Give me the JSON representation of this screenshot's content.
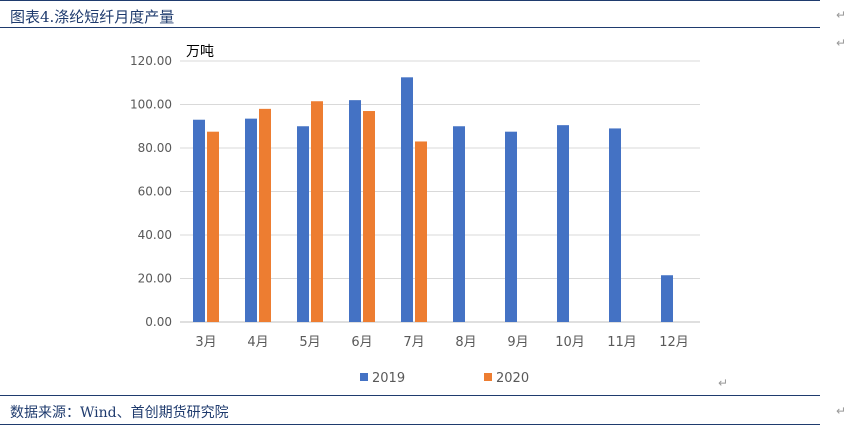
{
  "header": {
    "title": "图表4.涤纶短纤月度产量"
  },
  "footer": {
    "source": "数据来源：Wind、首创期货研究院"
  },
  "chart_data": {
    "type": "bar",
    "ylabel": "万吨",
    "categories": [
      "3月",
      "4月",
      "5月",
      "6月",
      "7月",
      "8月",
      "9月",
      "10月",
      "11月",
      "12月"
    ],
    "yticks": [
      "0.00",
      "20.00",
      "40.00",
      "60.00",
      "80.00",
      "100.00",
      "120.00"
    ],
    "ylim": [
      0,
      120
    ],
    "grid": true,
    "legend_position": "bottom",
    "series": [
      {
        "name": "2019",
        "color": "#4472c4",
        "values": [
          93,
          93.5,
          90,
          102,
          112.5,
          90,
          87.5,
          90.5,
          89,
          21.5
        ]
      },
      {
        "name": "2020",
        "color": "#ed7d31",
        "values": [
          87.5,
          98,
          101.5,
          97,
          83,
          null,
          null,
          null,
          null,
          null
        ]
      }
    ]
  }
}
